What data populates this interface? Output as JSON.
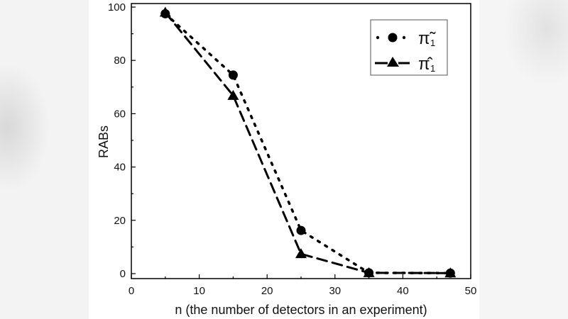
{
  "chart_data": {
    "type": "line",
    "title": "",
    "xlabel": "n (the number of detectors in an experiment)",
    "ylabel": "RABs",
    "xlim": [
      0,
      50
    ],
    "ylim": [
      0,
      100
    ],
    "x_ticks": [
      "0",
      "10",
      "20",
      "30",
      "40",
      "50"
    ],
    "y_ticks": [
      "0",
      "20",
      "40",
      "60",
      "80",
      "100"
    ],
    "grid": false,
    "legend_position": "upper right",
    "x": [
      5,
      15,
      25,
      35,
      47
    ],
    "series": [
      {
        "name": "π̃₁ (pi tilde sub 1)",
        "legend_symbol": "π̃",
        "legend_sub": "1",
        "marker": "circle",
        "line_style": "dotted",
        "values": [
          97.5,
          74.5,
          16.2,
          0.3,
          0.2
        ]
      },
      {
        "name": "π̂₁ (pi hat sub 1)",
        "legend_symbol": "π̂",
        "legend_sub": "1",
        "marker": "triangle",
        "line_style": "dashed",
        "values": [
          98,
          66.8,
          7.4,
          0.3,
          0.2
        ]
      }
    ]
  },
  "axes": {
    "xlabel": "n (the number of detectors in an experiment)",
    "ylabel": "RABs"
  },
  "legend": {
    "entry1_symbol": "π̃",
    "entry1_sub": "1",
    "entry2_symbol": "π̂",
    "entry2_sub": "1"
  },
  "colors": {
    "ink": "#000000",
    "panel": "#ffffff"
  }
}
